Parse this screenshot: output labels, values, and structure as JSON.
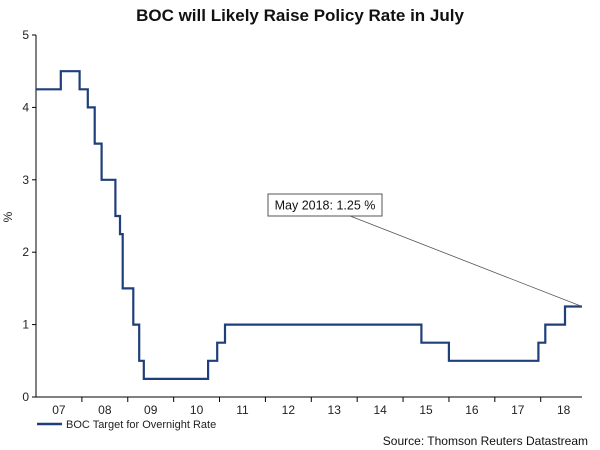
{
  "chart_data": {
    "type": "line",
    "title": "BOC will Likely Raise Policy Rate in July",
    "xlabel": "",
    "ylabel": "%",
    "xlim": [
      2006.5,
      2018.4
    ],
    "ylim": [
      0,
      5
    ],
    "y_ticks": [
      0,
      1,
      2,
      3,
      4,
      5
    ],
    "x_ticks": [
      {
        "value": 2007,
        "label": "07"
      },
      {
        "value": 2008,
        "label": "08"
      },
      {
        "value": 2009,
        "label": "09"
      },
      {
        "value": 2010,
        "label": "10"
      },
      {
        "value": 2011,
        "label": "11"
      },
      {
        "value": 2012,
        "label": "12"
      },
      {
        "value": 2013,
        "label": "13"
      },
      {
        "value": 2014,
        "label": "14"
      },
      {
        "value": 2015,
        "label": "15"
      },
      {
        "value": 2016,
        "label": "16"
      },
      {
        "value": 2017,
        "label": "17"
      },
      {
        "value": 2018,
        "label": "18"
      }
    ],
    "series": [
      {
        "name": "BOC Target for Overnight Rate",
        "color": "#1f3f7a",
        "step": true,
        "x": [
          2006.5,
          2007.04,
          2007.45,
          2007.63,
          2007.78,
          2007.93,
          2008.18,
          2008.23,
          2008.33,
          2008.39,
          2008.5,
          2008.62,
          2008.75,
          2008.85,
          2009.1,
          2009.2,
          2009.35,
          2009.45,
          2010.25,
          2010.45,
          2010.55,
          2010.62,
          2014.9,
          2015.05,
          2015.5,
          2017.1,
          2017.45,
          2017.6,
          2017.95,
          2018.03,
          2018.4
        ],
        "values": [
          4.25,
          4.5,
          4.25,
          4.0,
          3.5,
          3.0,
          3.0,
          2.5,
          2.25,
          1.5,
          1.5,
          1.0,
          0.5,
          0.25,
          0.25,
          0.25,
          0.25,
          0.25,
          0.5,
          0.75,
          0.75,
          1.0,
          0.75,
          0.75,
          0.5,
          0.5,
          0.75,
          1.0,
          1.0,
          1.25,
          1.25
        ]
      }
    ],
    "annotation": {
      "text": "May 2018: 1.25 %",
      "x": 2018.4,
      "y": 1.25
    },
    "legend": "bottom-left",
    "grid": false,
    "source": "Source: Thomson Reuters Datastream"
  }
}
